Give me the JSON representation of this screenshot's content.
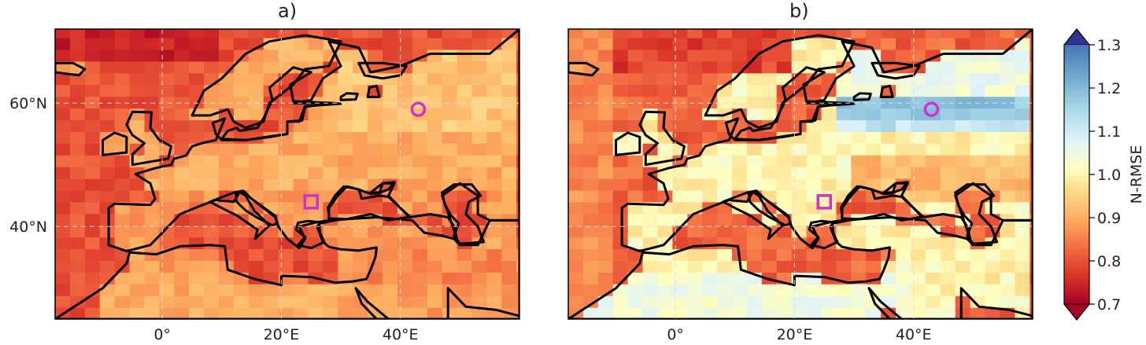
{
  "chart_data": [
    {
      "type": "heatmap",
      "title": "a)",
      "xlabel": "",
      "ylabel": "",
      "x_ticks": [
        "0°",
        "20°E",
        "40°E"
      ],
      "y_ticks": [
        "60°N",
        "40°N"
      ],
      "grid": true,
      "extent": {
        "lon": [
          -18,
          60
        ],
        "lat": [
          25,
          72
        ]
      },
      "markers": [
        {
          "shape": "circle",
          "lon": 43,
          "lat": 59,
          "color": "#cc33cc"
        },
        {
          "shape": "square",
          "lon": 25,
          "lat": 44,
          "color": "#cc33cc"
        }
      ],
      "value_summary": "N-RMSE mostly 0.75–0.95 across domain; lowest (~0.7–0.8) over Atlantic, Baltic, Mediterranean and Black Sea"
    },
    {
      "type": "heatmap",
      "title": "b)",
      "xlabel": "",
      "ylabel": "",
      "x_ticks": [
        "0°",
        "20°E",
        "40°E"
      ],
      "y_ticks": [],
      "grid": true,
      "extent": {
        "lon": [
          -18,
          60
        ],
        "lat": [
          25,
          72
        ]
      },
      "markers": [
        {
          "shape": "circle",
          "lon": 43,
          "lat": 59,
          "color": "#cc33cc"
        },
        {
          "shape": "square",
          "lon": 25,
          "lat": 44,
          "color": "#cc33cc"
        }
      ],
      "value_summary": "N-RMSE ~1.0 over most land; up to ~1.2 over western Russia near 58–60°N; ~0.7–0.8 over Atlantic, Baltic, Black Sea"
    }
  ],
  "colorbar": {
    "label": "N-RMSE",
    "min": 0.7,
    "max": 1.3,
    "ticks": [
      "0.7",
      "0.8",
      "0.9",
      "1.0",
      "1.1",
      "1.2",
      "1.3"
    ],
    "extend": "both",
    "colormap": "RdYlBu"
  }
}
